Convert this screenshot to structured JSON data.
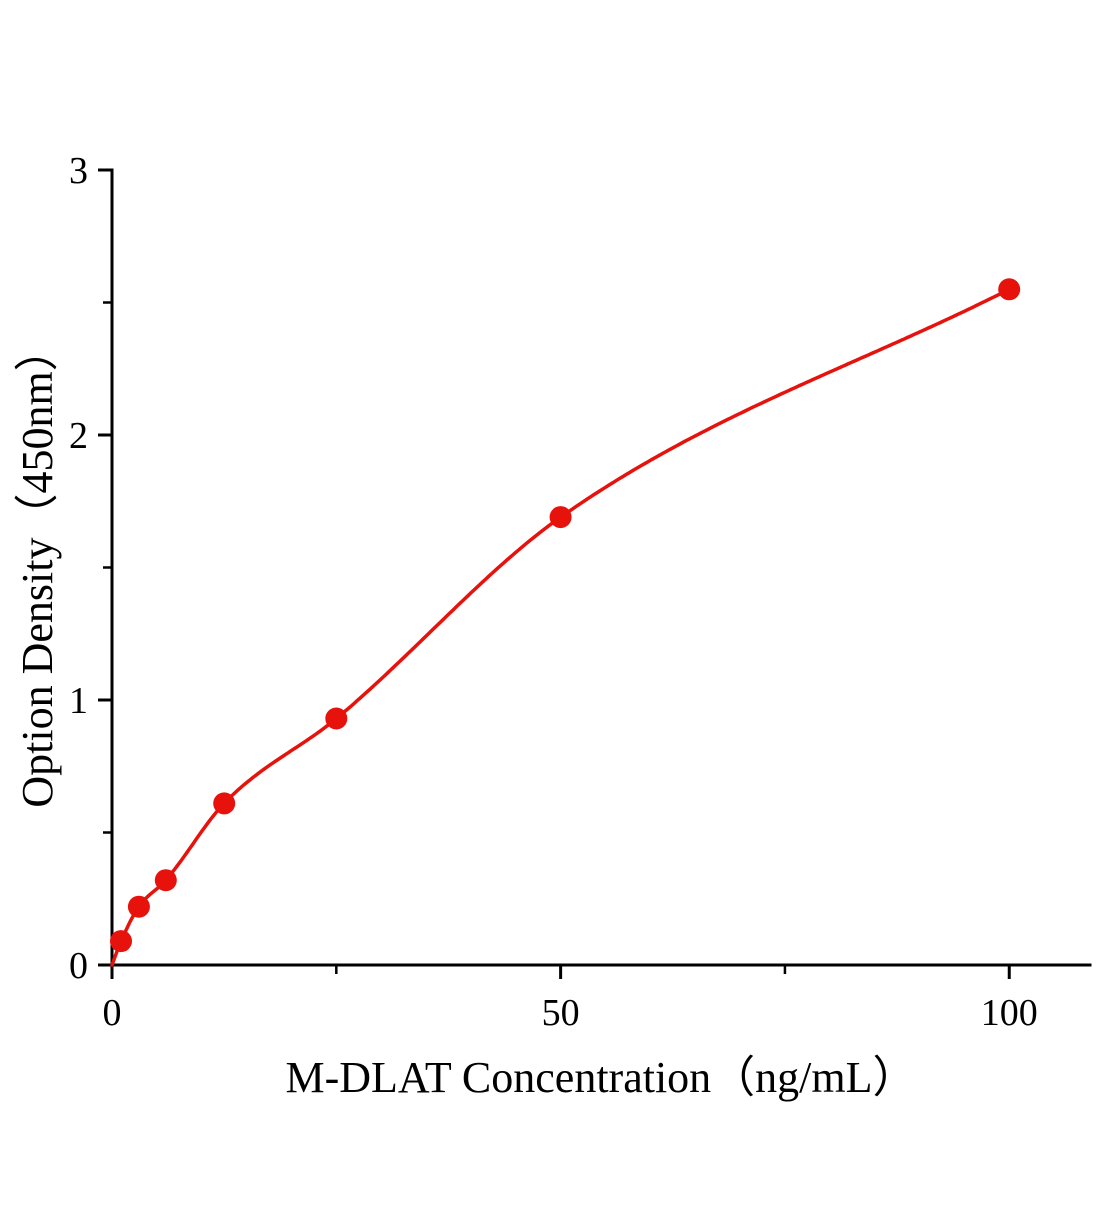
{
  "figure": {
    "background": "#ffffff"
  },
  "chart_data": {
    "type": "scatter",
    "title": "",
    "xlabel": "M-DLAT Concentration（ng/mL）",
    "ylabel": "Option Density（450nm）",
    "x": [
      1,
      3,
      6,
      12.5,
      25,
      50,
      100
    ],
    "y": [
      0.09,
      0.22,
      0.32,
      0.61,
      0.93,
      1.69,
      2.55
    ],
    "curve_start": [
      0,
      0
    ],
    "xlim": [
      0,
      109
    ],
    "ylim": [
      0,
      3
    ],
    "xticks": [
      0,
      50,
      100
    ],
    "xtick_labels": [
      "0",
      "50",
      "100"
    ],
    "xticks_minor": [
      25,
      75
    ],
    "yticks": [
      0,
      1,
      2,
      3
    ],
    "ytick_labels": [
      "0",
      "1",
      "2",
      "3"
    ],
    "yticks_minor": [
      0.5,
      1.5,
      2.5
    ],
    "grid": false,
    "legend": null,
    "marker": "circle",
    "marker_color": "#e8120c",
    "line_color": "#e8120c",
    "axis_color": "#000000"
  }
}
